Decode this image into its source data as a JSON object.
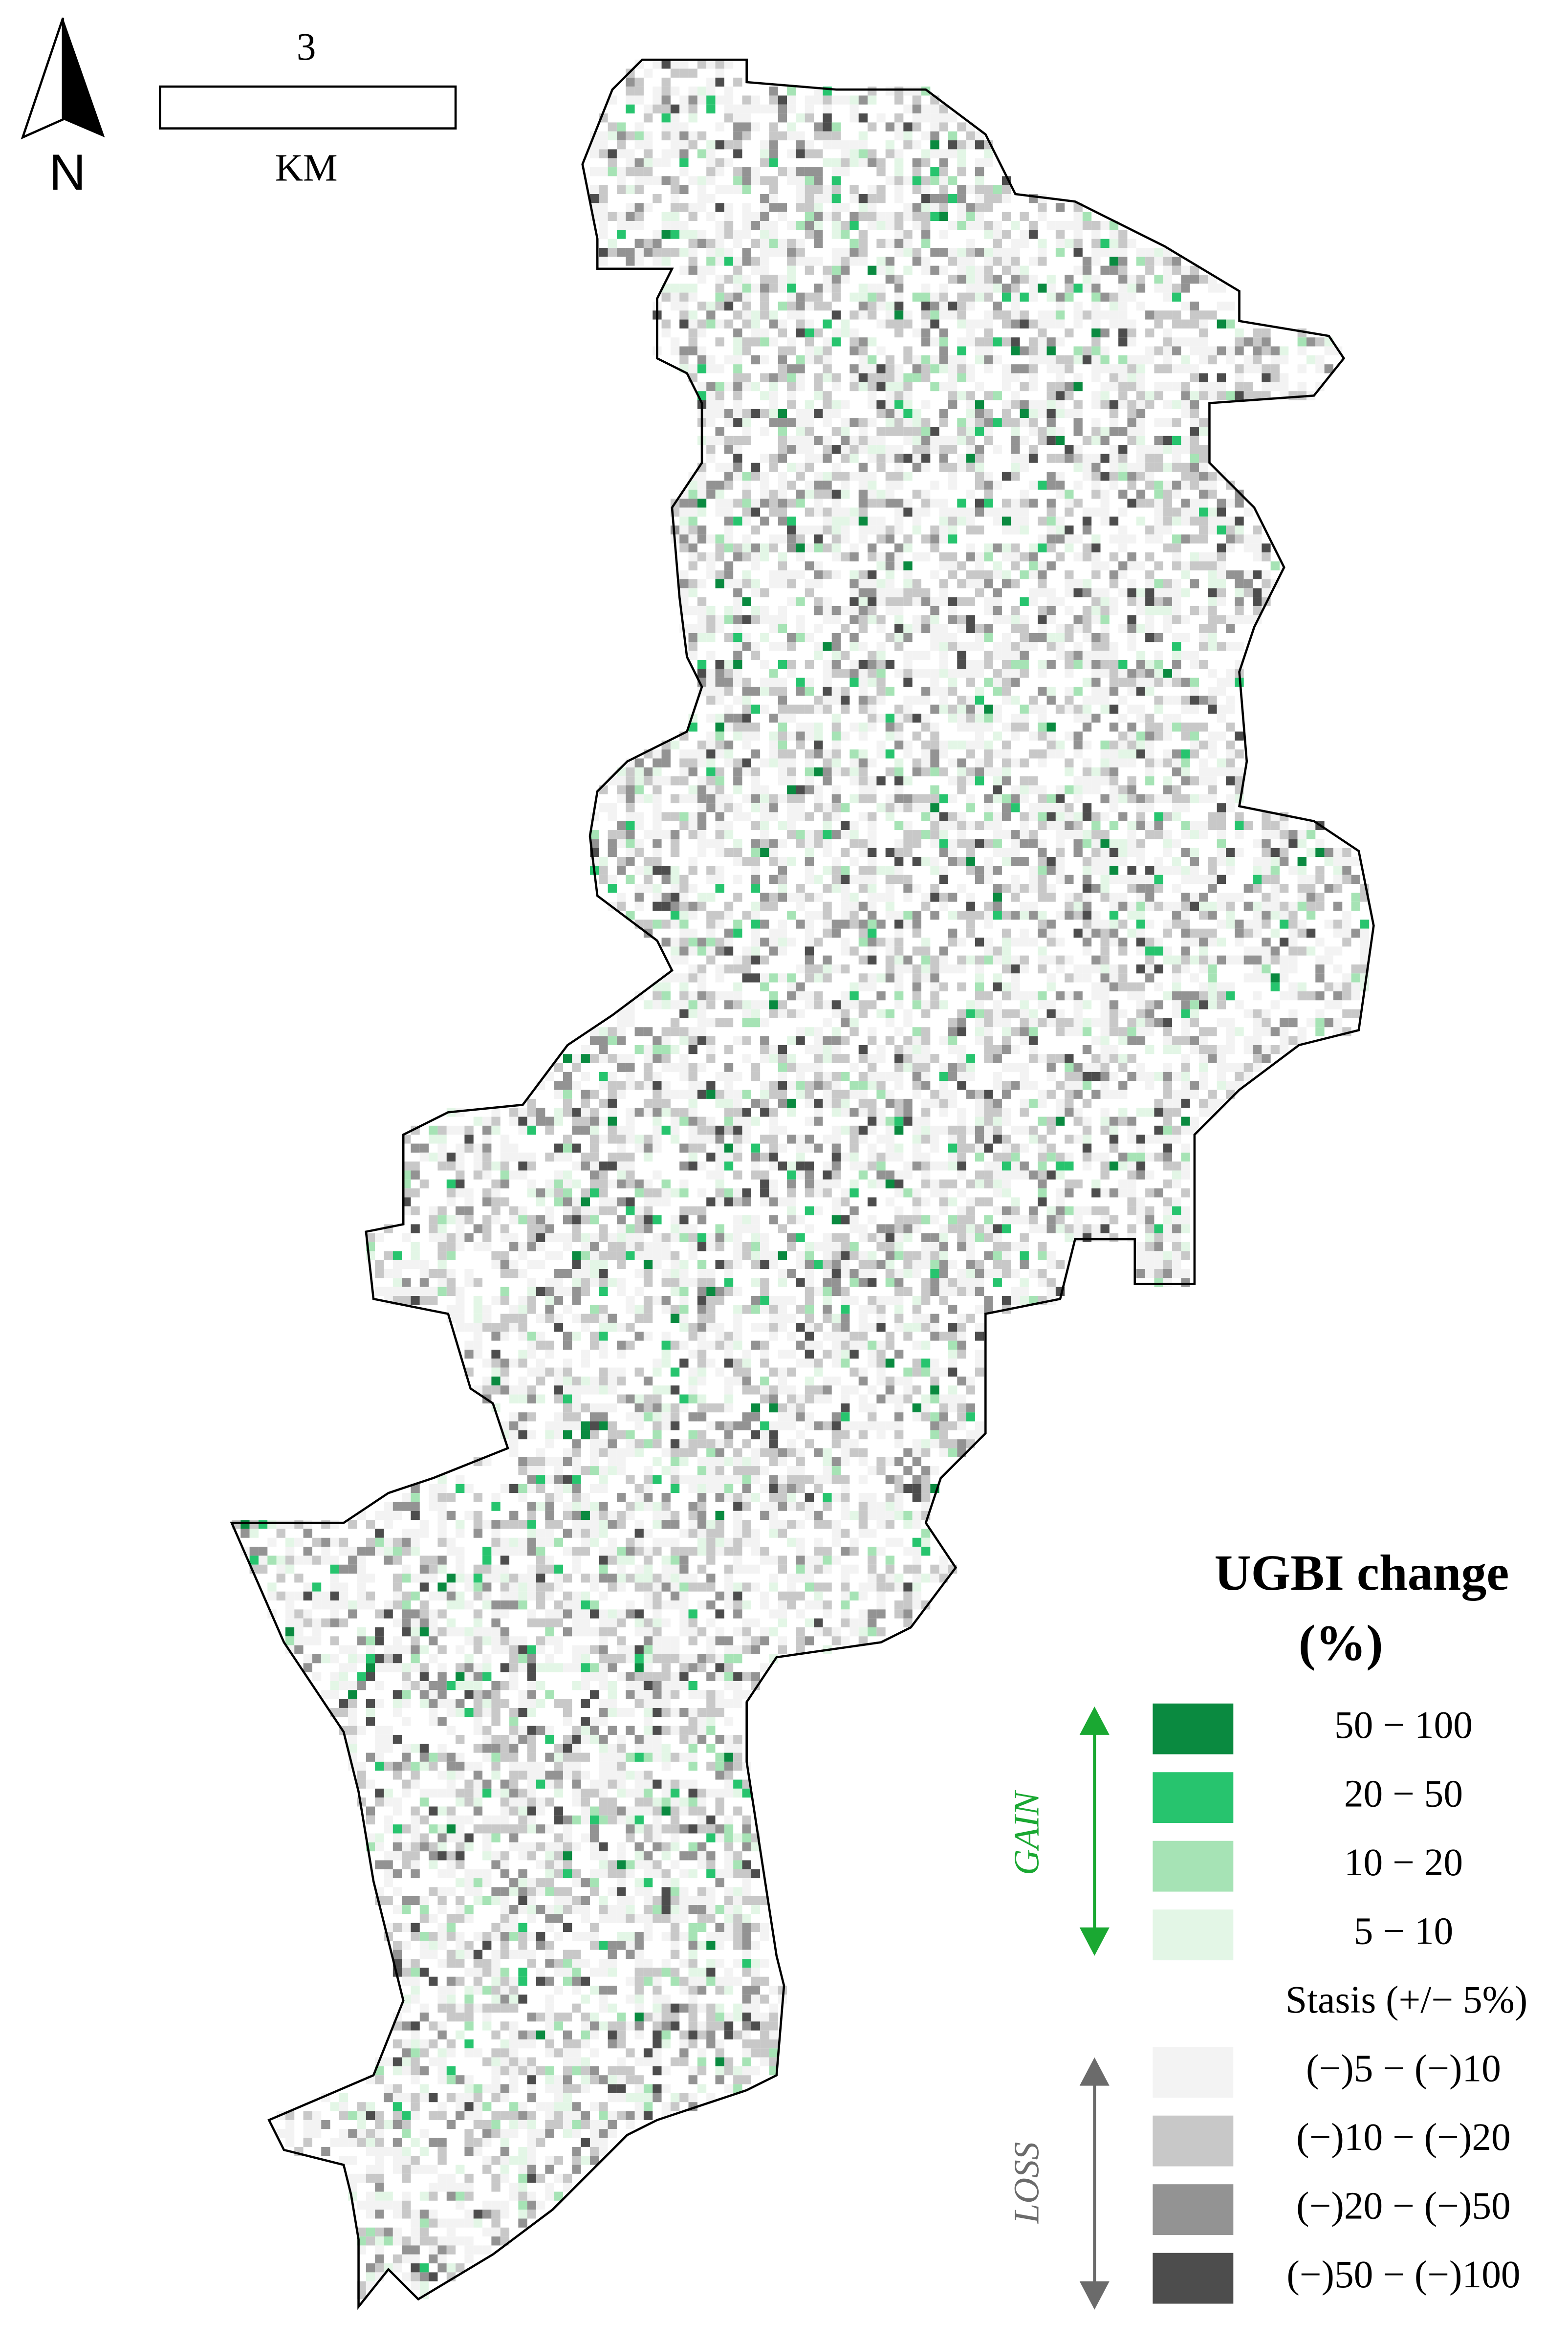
{
  "north_label": "N",
  "scale_bar": {
    "distance": "3",
    "unit": "KM"
  },
  "legend": {
    "title": [
      "UGBI change",
      "(%)"
    ],
    "gain_label": "GAIN",
    "loss_label": "LOSS",
    "classes": [
      {
        "label": "50 − 100",
        "color": "#0a8a40"
      },
      {
        "label": "20 − 50",
        "color": "#27c46e"
      },
      {
        "label": "10 − 20",
        "color": "#a6e3b5"
      },
      {
        "label": "5 − 10",
        "color": "#e3f6e6"
      },
      {
        "label": "Stasis (+/− 5%)"
      },
      {
        "label": "(−)5 − (−)10",
        "color": "#f3f3f3"
      },
      {
        "label": "(−)10 − (−)20",
        "color": "#c8c8c8"
      },
      {
        "label": "(−)20 − (−)50",
        "color": "#939393"
      },
      {
        "label": "(−)50 − (−)100",
        "color": "#4d4d4d"
      }
    ]
  }
}
